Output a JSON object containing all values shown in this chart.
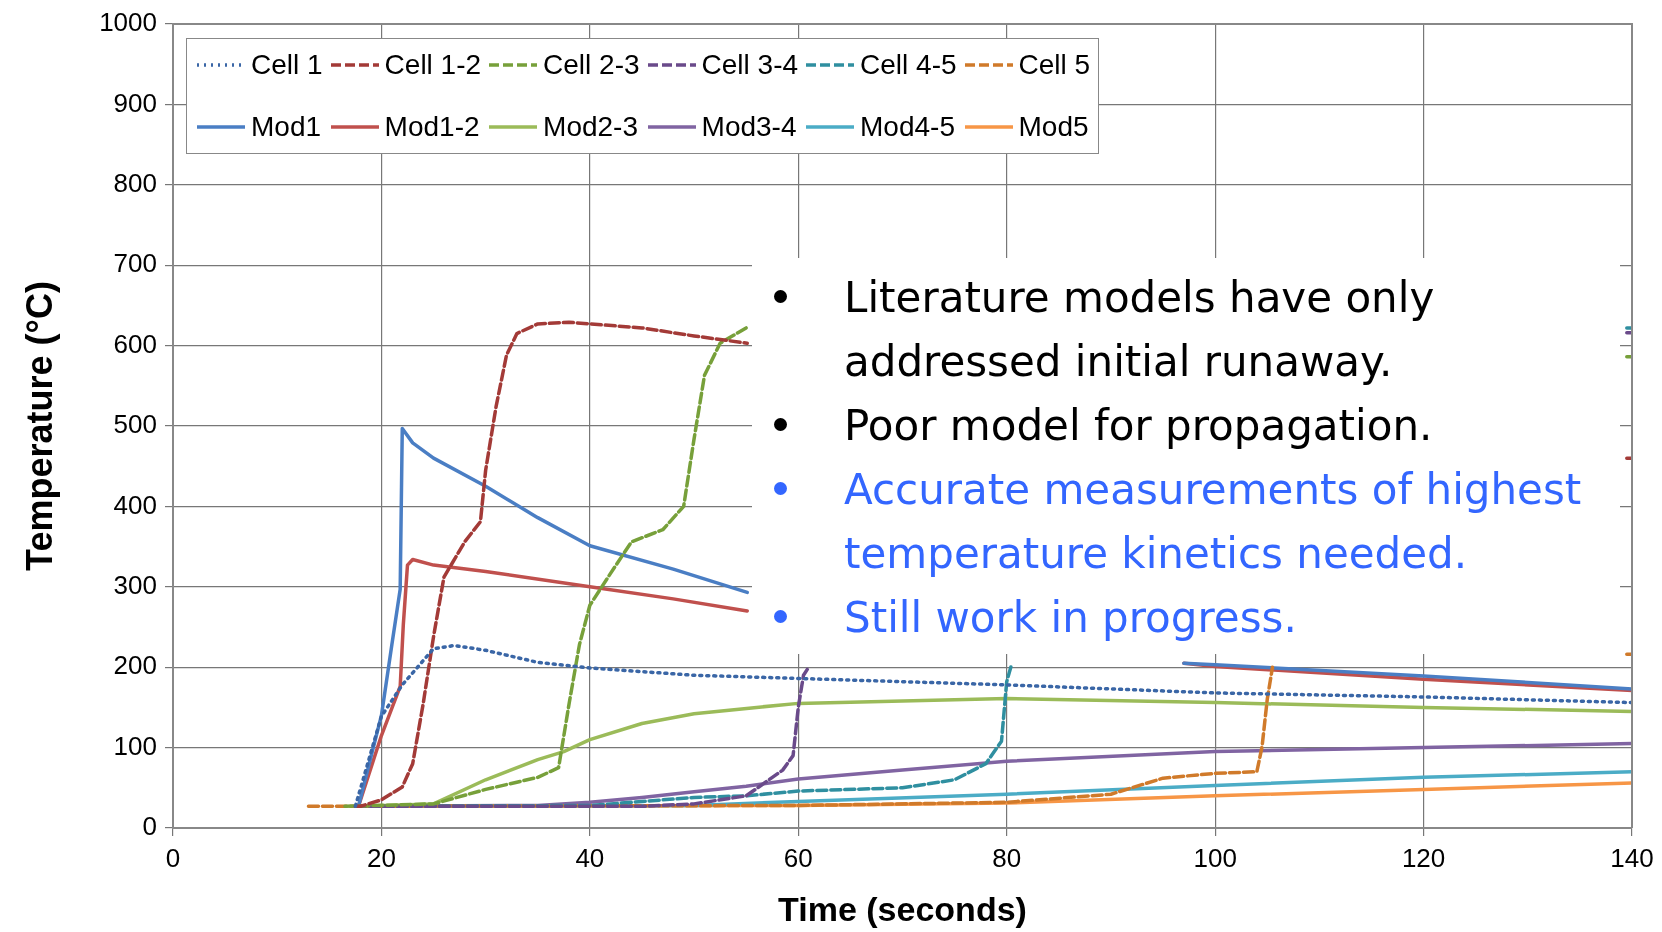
{
  "chart_data": {
    "type": "line",
    "xlabel": "Time (seconds)",
    "ylabel": "Temperature (°C)",
    "xlim": [
      0,
      140
    ],
    "xticks": [
      0,
      20,
      40,
      60,
      80,
      100,
      120,
      140
    ],
    "ylim": [
      0,
      1000
    ],
    "yticks": [
      0,
      100,
      200,
      300,
      400,
      500,
      600,
      700,
      800,
      900,
      {
        "value": 1000,
        "label": "1000"
      }
    ],
    "grid": true,
    "legend": "top left",
    "marker": "none",
    "annotations": [
      "Literature models have only addressed initial runaway.",
      "Poor model for propagation.",
      "Accurate measurements of highest temperature kinetics needed.",
      "Still work in progress."
    ],
    "series": [
      {
        "name": "Cell 1",
        "color": "#3a66a6",
        "line_style": "dotted",
        "x": [
          17.5,
          20,
          22,
          25,
          27,
          30,
          35,
          40,
          50,
          60,
          80,
          100,
          120,
          140
        ],
        "values": [
          27,
          139,
          178,
          223,
          227,
          221,
          206,
          199,
          190,
          186,
          178,
          168,
          163,
          156
        ]
      },
      {
        "name": "Cell 1-2",
        "color": "#a33a37",
        "line_style": "dashed",
        "x": [
          17.5,
          18,
          20,
          22,
          23,
          24,
          25,
          26,
          28,
          29.5,
          30,
          31,
          32,
          33,
          35,
          38,
          45,
          50,
          55.1,
          80,
          139.5,
          140
        ],
        "values": [
          27,
          27,
          35,
          51,
          80,
          154,
          238,
          312,
          356,
          381,
          445,
          524,
          588,
          615,
          627,
          629,
          622,
          612,
          603,
          null,
          460,
          460
        ]
      },
      {
        "name": "Cell 2-3",
        "color": "#77a03a",
        "line_style": "dashed",
        "x": [
          16.5,
          25,
          30,
          35,
          37,
          38,
          39,
          40,
          42,
          44,
          47,
          49,
          50,
          51,
          52.5,
          55,
          80,
          139.5,
          140
        ],
        "values": [
          27,
          30,
          48,
          63,
          75,
          154,
          228,
          277,
          317,
          356,
          371,
          400,
          484,
          563,
          603,
          622,
          null,
          586,
          586
        ]
      },
      {
        "name": "Cell 3-4",
        "color": "#6a4a8a",
        "line_style": "dashed",
        "x": [
          17.5,
          45,
          50,
          55,
          58.5,
          59.5,
          60,
          60.5,
          61,
          90,
          139.5,
          140
        ],
        "values": [
          27,
          27,
          30,
          40,
          72,
          90,
          150,
          190,
          200,
          null,
          616,
          616
        ]
      },
      {
        "name": "Cell 4-5",
        "color": "#2f8fa0",
        "line_style": "dashed",
        "x": [
          17.5,
          40,
          50,
          55,
          60,
          70,
          75,
          78,
          79.5,
          80,
          80.5,
          110,
          139.5,
          140
        ],
        "values": [
          27,
          28,
          38,
          40,
          46,
          50,
          60,
          80,
          108,
          182,
          205,
          null,
          622,
          622
        ]
      },
      {
        "name": "Cell 5",
        "color": "#d07a2a",
        "line_style": "dashed",
        "x": [
          13,
          60,
          80,
          90,
          95,
          100,
          104,
          104.5,
          105,
          105.5,
          120,
          139.5,
          140
        ],
        "values": [
          27,
          28,
          32,
          42,
          62,
          68,
          70,
          101,
          160,
          200,
          null,
          216,
          216
        ]
      },
      {
        "name": "Mod1",
        "color": "#4a7ec4",
        "line_style": "solid",
        "x": [
          17.8,
          20,
          21,
          21.8,
          22,
          23,
          25,
          30,
          35,
          40,
          48,
          55.1,
          76,
          97,
          100,
          120,
          140
        ],
        "values": [
          27,
          140,
          228,
          297,
          497,
          479,
          460,
          425,
          386,
          351,
          322,
          293,
          null,
          205,
          203,
          189,
          173
        ]
      },
      {
        "name": "Mod1-2",
        "color": "#c0504d",
        "line_style": "solid",
        "x": [
          17.8,
          20,
          21.8,
          22.1,
          22.5,
          23,
          25,
          30,
          40,
          48,
          55.1,
          76,
          97,
          100,
          120,
          140
        ],
        "values": [
          27,
          115,
          176,
          253,
          327,
          334,
          327,
          319,
          300,
          285,
          270,
          null,
          205,
          201,
          185,
          171
        ]
      },
      {
        "name": "Mod2-3",
        "color": "#9bbb59",
        "line_style": "solid",
        "x": [
          17.8,
          25,
          30,
          35,
          37.5,
          40,
          45,
          50,
          56,
          60,
          80,
          100,
          120,
          140
        ],
        "values": [
          27,
          30,
          60,
          85,
          95,
          110,
          130,
          142,
          150,
          155,
          161,
          156,
          150,
          145
        ]
      },
      {
        "name": "Mod3-4",
        "color": "#8064a2",
        "line_style": "solid",
        "x": [
          17.8,
          35,
          40,
          45,
          50,
          55,
          60,
          70,
          80,
          100,
          120,
          140
        ],
        "values": [
          27,
          28,
          32,
          38,
          45,
          52,
          61,
          72,
          83,
          95,
          100,
          105
        ]
      },
      {
        "name": "Mod4-5",
        "color": "#4bacc6",
        "line_style": "solid",
        "x": [
          17.8,
          50,
          60,
          80,
          100,
          120,
          140
        ],
        "values": [
          27,
          28,
          33,
          42,
          53,
          63,
          70
        ]
      },
      {
        "name": "Mod5",
        "color": "#f79646",
        "line_style": "solid",
        "x": [
          17.8,
          60,
          80,
          100,
          120,
          140
        ],
        "values": [
          27,
          28,
          31,
          40,
          48,
          56
        ]
      }
    ]
  }
}
